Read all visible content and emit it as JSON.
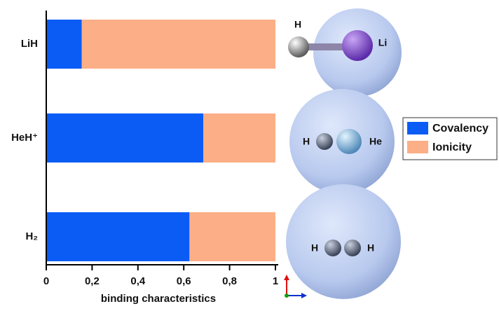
{
  "chart_data": {
    "type": "stacked-barh",
    "categories": [
      "LiH",
      "HeH⁺",
      "H₂"
    ],
    "series": [
      {
        "name": "Covalency",
        "color": "#0a5cf5",
        "values": [
          0.155,
          0.685,
          0.625
        ]
      },
      {
        "name": "Ionicity",
        "color": "#fcae86",
        "values": [
          0.845,
          0.315,
          0.375
        ]
      }
    ],
    "xlabel": "binding characteristics",
    "xlim": [
      0,
      1
    ],
    "xticks": [
      0,
      {
        "value": 0.2,
        "label": "0,2"
      },
      {
        "value": 0.4,
        "label": "0,4"
      },
      {
        "value": 0.6,
        "label": "0,6"
      },
      {
        "value": 0.8,
        "label": "0,8"
      },
      1
    ],
    "legend": "right",
    "molecule_labels": [
      [
        "H",
        "Li"
      ],
      [
        "H",
        "He"
      ],
      [
        "H",
        "H"
      ]
    ]
  }
}
